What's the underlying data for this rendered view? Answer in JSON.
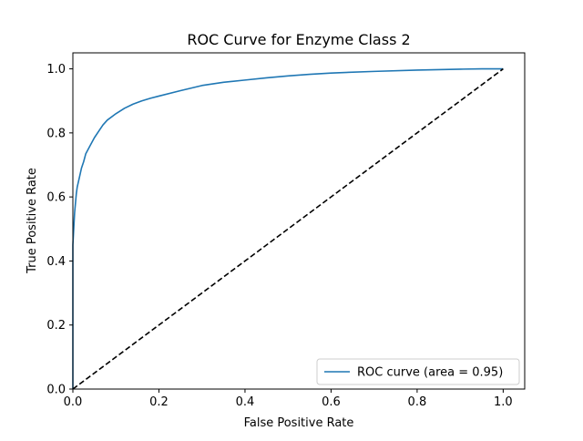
{
  "chart_data": {
    "type": "line",
    "title": "ROC Curve for Enzyme Class 2",
    "xlabel": "False Positive Rate",
    "ylabel": "True Positive Rate",
    "xlim": [
      0.0,
      1.05
    ],
    "ylim": [
      0.0,
      1.05
    ],
    "x_ticks": [
      0.0,
      0.2,
      0.4,
      0.6,
      0.8,
      1.0
    ],
    "y_ticks": [
      0.0,
      0.2,
      0.4,
      0.6,
      0.8,
      1.0
    ],
    "grid": false,
    "legend_position": "lower-right",
    "series": [
      {
        "name": "ROC curve (area = 0.95)",
        "color": "#1f77b4",
        "style": "solid",
        "x": [
          0.0,
          0.0,
          0.0,
          0.002,
          0.004,
          0.006,
          0.008,
          0.01,
          0.015,
          0.02,
          0.025,
          0.03,
          0.04,
          0.05,
          0.06,
          0.07,
          0.08,
          0.1,
          0.12,
          0.14,
          0.16,
          0.18,
          0.2,
          0.25,
          0.3,
          0.35,
          0.4,
          0.45,
          0.5,
          0.55,
          0.6,
          0.7,
          0.8,
          0.9,
          0.95,
          1.0
        ],
        "y": [
          0.0,
          0.37,
          0.45,
          0.5,
          0.55,
          0.58,
          0.61,
          0.63,
          0.66,
          0.69,
          0.71,
          0.735,
          0.76,
          0.785,
          0.805,
          0.825,
          0.84,
          0.86,
          0.877,
          0.89,
          0.9,
          0.908,
          0.915,
          0.932,
          0.948,
          0.958,
          0.965,
          0.972,
          0.978,
          0.983,
          0.987,
          0.992,
          0.996,
          0.999,
          1.0,
          1.0
        ]
      },
      {
        "name": "",
        "color": "#000000",
        "style": "dashed",
        "x": [
          0.0,
          1.0
        ],
        "y": [
          0.0,
          1.0
        ]
      }
    ]
  }
}
